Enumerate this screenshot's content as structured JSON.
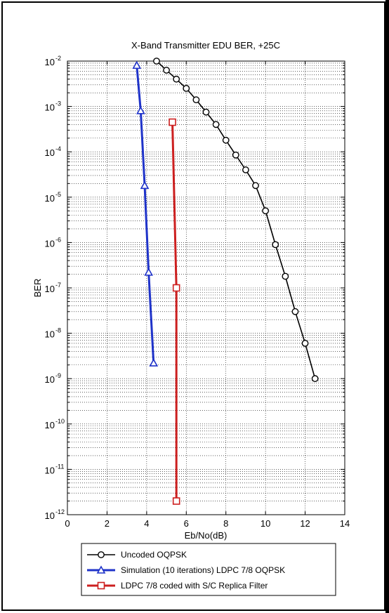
{
  "chart_data": {
    "type": "line",
    "title": "X-Band Transmitter EDU BER, +25C",
    "xlabel": "Eb/No(dB)",
    "ylabel": "BER",
    "xlim": [
      0,
      14
    ],
    "ylim_exponents": [
      -12,
      -2
    ],
    "yscale": "log",
    "grid": true,
    "legend_position": "below plot",
    "x_ticks": [
      "0",
      "2",
      "4",
      "6",
      "8",
      "10",
      "12",
      "14"
    ],
    "y_tick_base": "10",
    "y_tick_exponents": [
      "-12",
      "-11",
      "-10",
      "-9",
      "-8",
      "-7",
      "-6",
      "-5",
      "-4",
      "-3",
      "-2"
    ],
    "series": [
      {
        "name": "Uncoded OQPSK",
        "color": "#000000",
        "marker": "circle",
        "x": [
          4.5,
          5.0,
          5.5,
          6.0,
          6.5,
          7.0,
          7.5,
          8.0,
          8.5,
          9.0,
          9.5,
          10.0,
          10.5,
          11.0,
          11.5,
          12.0,
          12.5
        ],
        "y": [
          0.01,
          0.0063,
          0.004,
          0.0025,
          0.0014,
          0.00075,
          0.0004,
          0.00018,
          8.5e-05,
          4e-05,
          1.8e-05,
          5e-06,
          9e-07,
          1.8e-07,
          3e-08,
          6e-09,
          1e-09
        ]
      },
      {
        "name": "Simulation (10 iterations) LDPC 7/8 OQPSK",
        "color": "#1f33c9",
        "marker": "triangle",
        "x": [
          3.5,
          3.7,
          3.9,
          4.1,
          4.35
        ],
        "y": [
          0.008,
          0.0008,
          1.8e-05,
          2.2e-07,
          2.2e-09
        ]
      },
      {
        "name": "LDPC 7/8 coded with S/C Replica Filter",
        "color": "#cc1f1f",
        "marker": "square",
        "x": [
          5.3,
          5.5,
          5.5
        ],
        "y": [
          0.00045,
          1e-07,
          2e-12
        ]
      }
    ]
  }
}
